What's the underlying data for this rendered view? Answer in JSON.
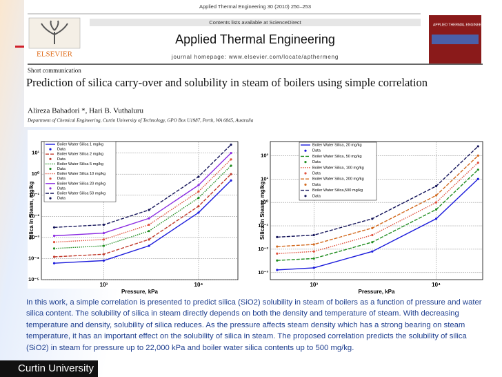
{
  "header": {
    "citation": "Applied Thermal Engineering 30 (2010) 250–253",
    "contents": "Contents lists available at ScienceDirect",
    "journal": "Applied Thermal Engineering",
    "homepage": "journal homepage: www.elsevier.com/locate/apthermeng",
    "publisher": "ELSEVIER",
    "cover_title": "APPLIED THERMAL ENGINEERING"
  },
  "article": {
    "type": "Short communication",
    "title": "Prediction of silica carry-over and solubility in steam of boilers using simple correlation",
    "authors": "Alireza Bahadori *, Hari B. Vuthaluru",
    "affiliation": "Department of Chemical Engineering, Curtin University of Technology, GPO Box U1987, Perth, WA 6845, Australia"
  },
  "charts": [
    {
      "type": "line",
      "x_label": "Pressure, kPa",
      "y_label": "Silica in Steam, mg/kg",
      "log_x": true,
      "log_y": true,
      "grid": true,
      "legend": "upper left",
      "xlim": [
        220,
        26000
      ],
      "ylim": [
        1e-05,
        35
      ],
      "xticks": [
        {
          "value": 1000,
          "label": "10³"
        },
        {
          "value": 10000,
          "label": "10⁴"
        }
      ],
      "yticks": [
        {
          "value": 1e-05,
          "label": "10⁻⁵"
        },
        {
          "value": 0.0001,
          "label": "10⁻⁴"
        },
        {
          "value": 0.001,
          "label": "10⁻³"
        },
        {
          "value": 0.01,
          "label": "10⁻²"
        },
        {
          "value": 0.1,
          "label": "10⁻¹"
        },
        {
          "value": 1,
          "label": "10⁰"
        },
        {
          "value": 10,
          "label": "10¹"
        }
      ],
      "x": [
        300,
        1000,
        3000,
        10000,
        22000
      ],
      "series": [
        {
          "name": "Boiler Water Silica 1 mg/kg",
          "marker_label": "Data",
          "color": "#1a1adb",
          "dash": "solid",
          "values": [
            6e-05,
            8e-05,
            0.0004,
            0.015,
            0.5
          ]
        },
        {
          "name": "Boiler Water Silica 2 mg/kg",
          "marker_label": "Data",
          "color": "#c0392b",
          "dash": "dashed",
          "values": [
            0.00012,
            0.00016,
            0.0008,
            0.03,
            1
          ]
        },
        {
          "name": "Boiler Water Silica 5 mg/kg",
          "marker_label": "Data",
          "color": "#1e8c1e",
          "dash": "dotted",
          "values": [
            0.0003,
            0.0004,
            0.002,
            0.075,
            2.5
          ]
        },
        {
          "name": "Boiler Water Silica 10 mg/kg",
          "marker_label": "Data",
          "color": "#e0503c",
          "dash": "dotted",
          "values": [
            0.0006,
            0.0008,
            0.004,
            0.15,
            5
          ]
        },
        {
          "name": "Boiler Water Silica 20 mg/kg",
          "marker_label": "Data",
          "color": "#8a2be2",
          "dash": "solid",
          "values": [
            0.0012,
            0.0016,
            0.008,
            0.3,
            10
          ]
        },
        {
          "name": "Boiler Water Silica 50 mg/kg",
          "marker_label": "Data",
          "color": "#14145a",
          "dash": "dashed",
          "values": [
            0.003,
            0.004,
            0.02,
            0.75,
            25
          ]
        }
      ]
    },
    {
      "type": "line",
      "x_label": "Pressure, kPa",
      "y_label": "Silica in Steam, mg/kg",
      "log_x": true,
      "log_y": true,
      "grid": true,
      "legend": "upper left",
      "xlim": [
        440,
        24000
      ],
      "ylim": [
        0.0005,
        400
      ],
      "xticks": [
        {
          "value": 1000,
          "label": "10³"
        },
        {
          "value": 10000,
          "label": "10⁴"
        }
      ],
      "yticks": [
        {
          "value": 0.001,
          "label": "10⁻³"
        },
        {
          "value": 0.01,
          "label": "10⁻²"
        },
        {
          "value": 0.1,
          "label": "10⁻¹"
        },
        {
          "value": 1,
          "label": "10⁰"
        },
        {
          "value": 10,
          "label": "10¹"
        },
        {
          "value": 100,
          "label": "10²"
        }
      ],
      "x": [
        500,
        1000,
        3000,
        10000,
        22000
      ],
      "series": [
        {
          "name": "Boiler Water Silica, 20 mg/kg",
          "marker_label": "Data",
          "color": "#1a1adb",
          "dash": "solid",
          "values": [
            0.0013,
            0.0016,
            0.008,
            0.2,
            10
          ]
        },
        {
          "name": "Boiler Water Silica, 50 mg/kg",
          "marker_label": "Data",
          "color": "#1e8c1e",
          "dash": "dashed",
          "values": [
            0.0033,
            0.004,
            0.02,
            0.5,
            25
          ]
        },
        {
          "name": "Boiler Water Silica, 100 mg/kg",
          "marker_label": "Data",
          "color": "#e0503c",
          "dash": "dotted",
          "values": [
            0.0065,
            0.008,
            0.04,
            1,
            50
          ]
        },
        {
          "name": "Boiler Water Silica, 200 mg/kg",
          "marker_label": "Data",
          "color": "#d2691e",
          "dash": "dashed",
          "values": [
            0.013,
            0.016,
            0.08,
            2,
            100
          ]
        },
        {
          "name": "Boiler Water Silica,500 mg/kg",
          "marker_label": "Data",
          "color": "#14145a",
          "dash": "dashed",
          "values": [
            0.033,
            0.04,
            0.2,
            5,
            250
          ]
        }
      ]
    }
  ],
  "body": "In this work, a simple correlation is presented to predict silica (SiO2) solubility in steam of boilers as a function of pressure and water silica content. The solubility of silica in steam directly depends on both the density and temperature of steam. With decreasing temperature and density, solubility of silica reduces. As the pressure affects steam density which has a strong bearing on steam temperature, it has an important effect on the solubility of silica in steam. The proposed correlation predicts the solubility of silica (SiO2) in steam for pressure up to 22,000 kPa and boiler water silica contents up to 500 mg/kg.",
  "footer": {
    "logo": "Curtin University"
  }
}
